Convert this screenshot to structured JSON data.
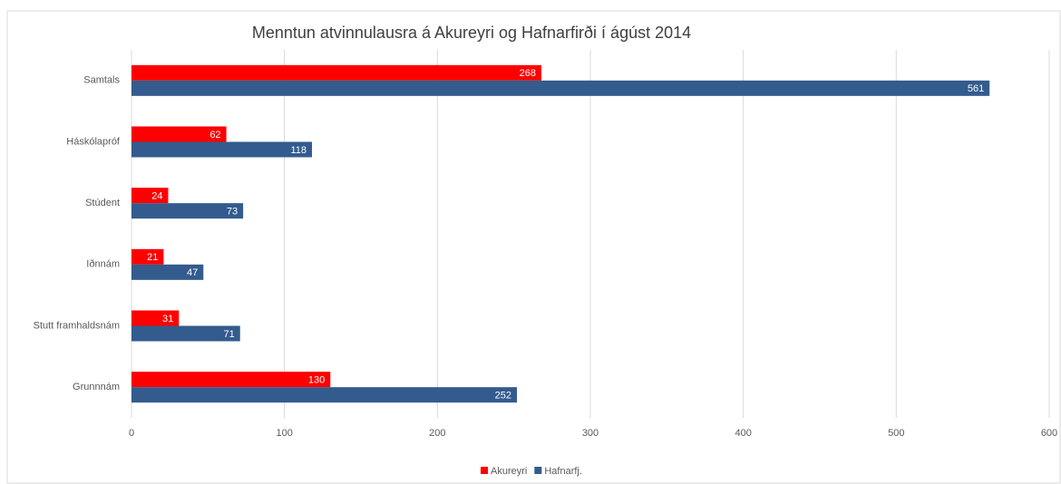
{
  "chart_data": {
    "type": "barh",
    "title": "Menntun atvinnulausra á Akureyri og Hafnarfirði í ágúst 2014",
    "categories": [
      "Samtals",
      "Háskólapróf",
      "Stúdent",
      "Iðnnám",
      "Stutt framhaldsnám",
      "Grunnnám"
    ],
    "series": [
      {
        "name": "Akureyri",
        "color": "#ff0000",
        "values": [
          268,
          62,
          24,
          21,
          31,
          130
        ]
      },
      {
        "name": "Hafnarfj.",
        "color": "#335b8e",
        "values": [
          561,
          118,
          73,
          47,
          71,
          252
        ]
      }
    ],
    "xlim": [
      0,
      600
    ],
    "xticks": [
      0,
      100,
      200,
      300,
      400,
      500,
      600
    ],
    "grid": true,
    "legend": "bottom"
  }
}
